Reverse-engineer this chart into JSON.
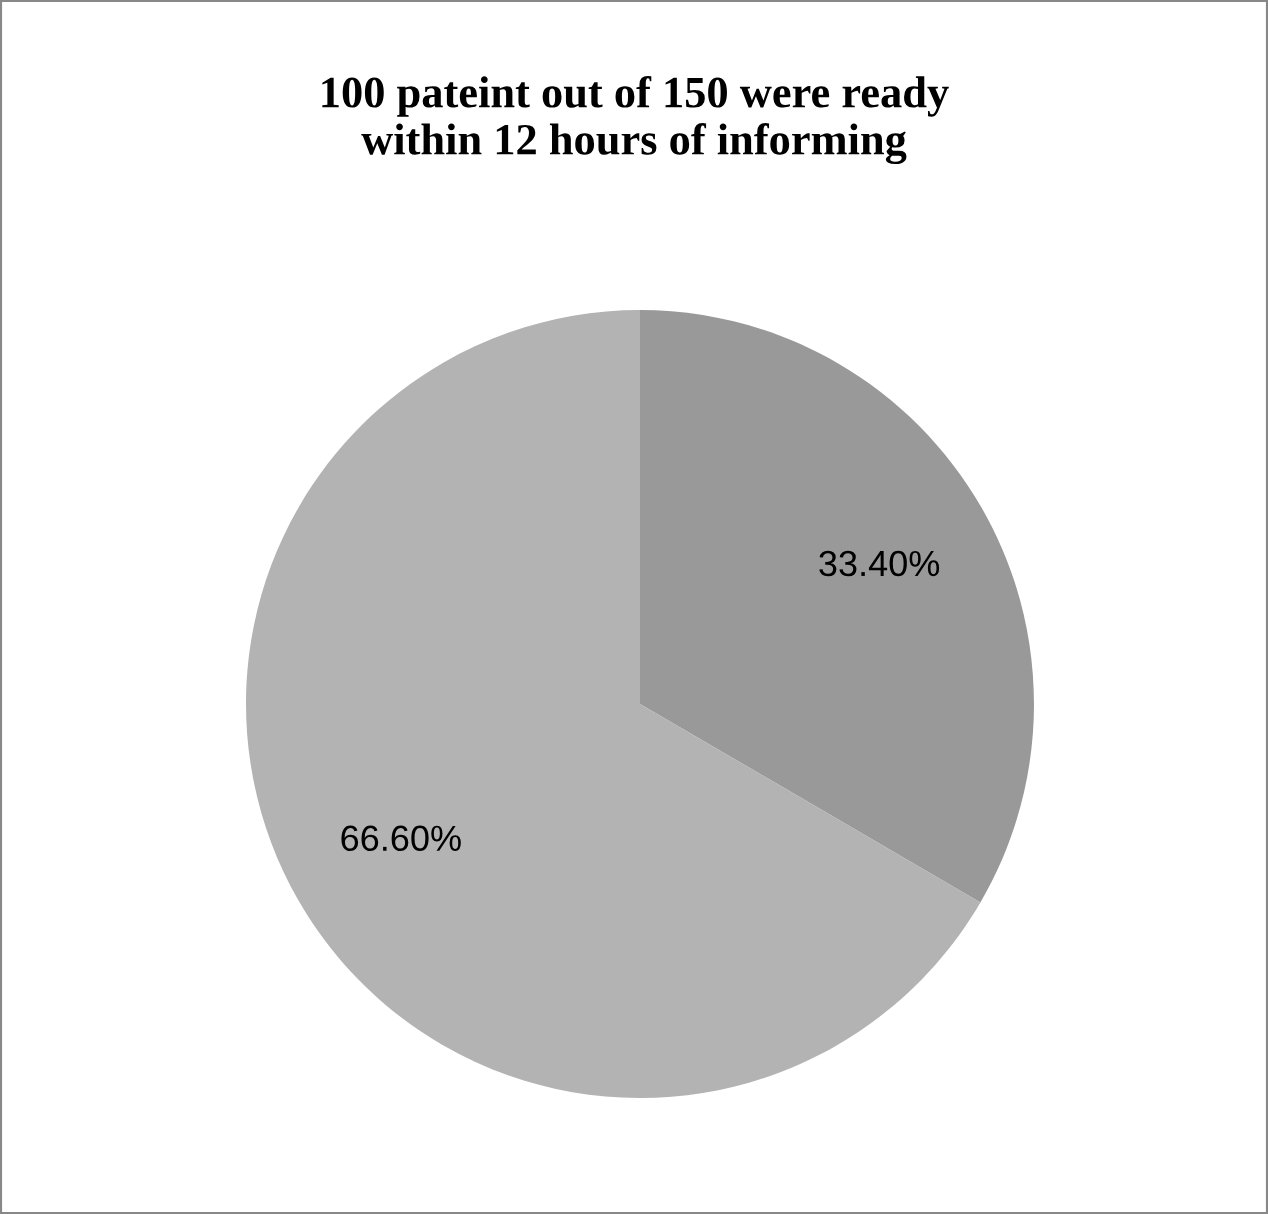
{
  "chart_data": {
    "type": "pie",
    "title": "100 pateint out of 150 were ready\nwithin 12 hours of informing",
    "categories": [
      null,
      null
    ],
    "values": [
      33.4,
      66.6
    ],
    "colors": [
      "#999999",
      "#b3b3b3"
    ],
    "value_labels": [
      "33.40%",
      "66.60%"
    ]
  }
}
